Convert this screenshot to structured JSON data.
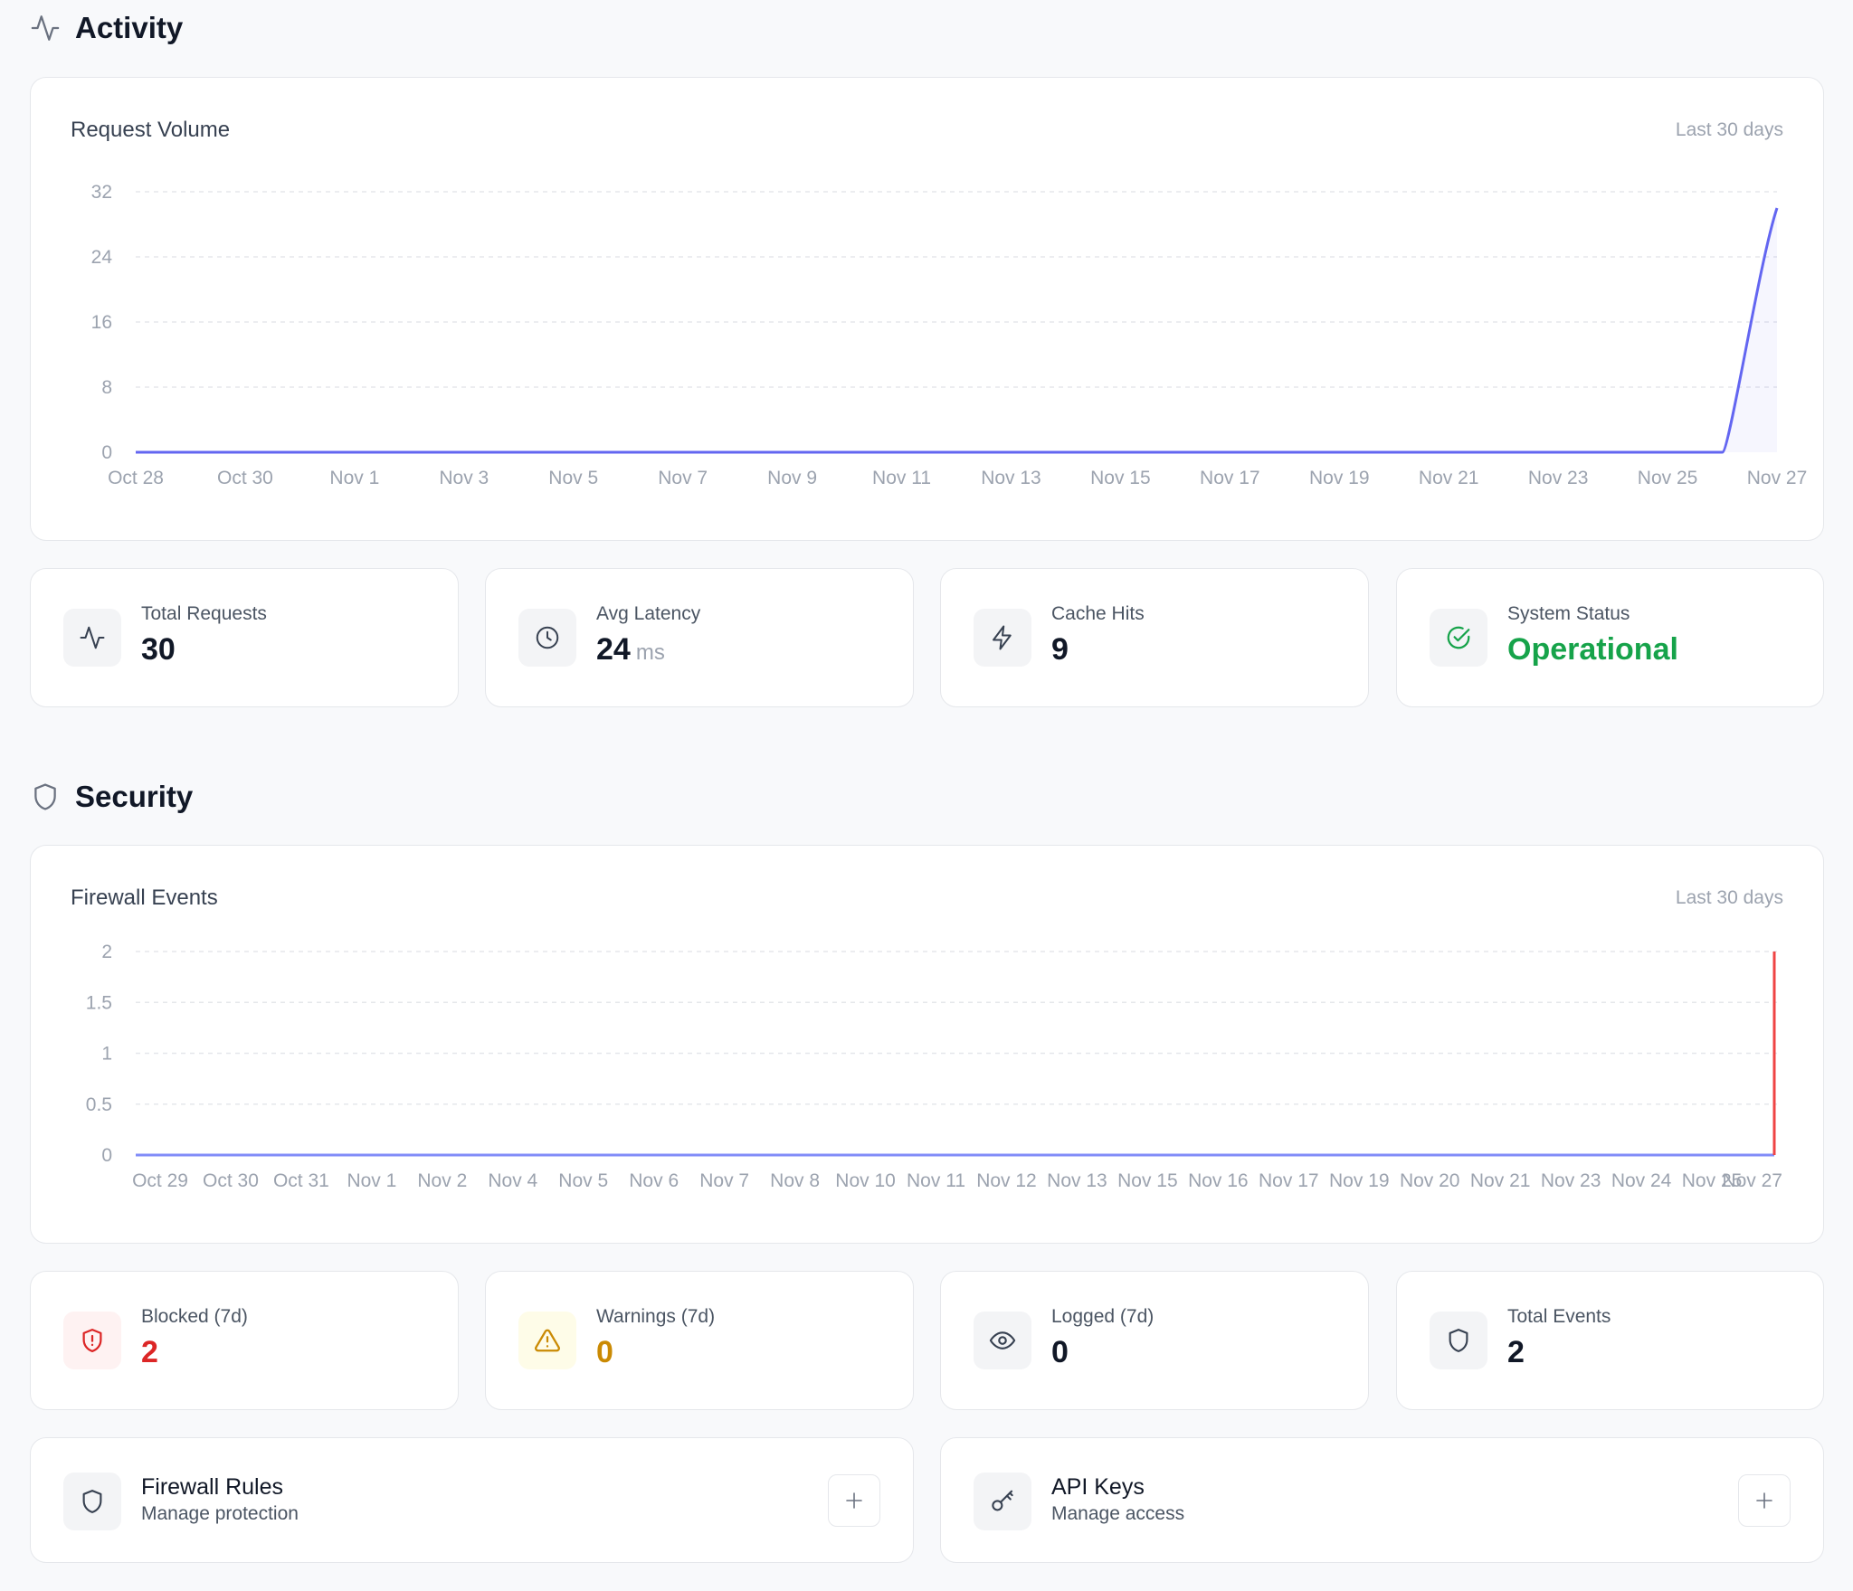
{
  "activity": {
    "heading": "Activity",
    "chart": {
      "title": "Request Volume",
      "range": "Last 30 days"
    },
    "stats": [
      {
        "label": "Total Requests",
        "value": "30",
        "unit": "",
        "icon": "activity-icon"
      },
      {
        "label": "Avg Latency",
        "value": "24",
        "unit": "ms",
        "icon": "clock-icon"
      },
      {
        "label": "Cache Hits",
        "value": "9",
        "unit": "",
        "icon": "zap-icon"
      },
      {
        "label": "System Status",
        "value": "Operational",
        "unit": "",
        "icon": "check-circle-icon",
        "color": "#16a34a"
      }
    ]
  },
  "security": {
    "heading": "Security",
    "chart": {
      "title": "Firewall Events",
      "range": "Last 30 days"
    },
    "stats": [
      {
        "label": "Blocked (7d)",
        "value": "2",
        "icon": "shield-alert-icon",
        "color": "#dc2626"
      },
      {
        "label": "Warnings (7d)",
        "value": "0",
        "icon": "warning-triangle-icon",
        "color": "#ca8a04"
      },
      {
        "label": "Logged (7d)",
        "value": "0",
        "icon": "eye-icon",
        "color": "#111827"
      },
      {
        "label": "Total Events",
        "value": "2",
        "icon": "shield-icon",
        "color": "#111827"
      }
    ],
    "links": [
      {
        "title": "Firewall Rules",
        "subtitle": "Manage protection",
        "icon": "shield-icon"
      },
      {
        "title": "API Keys",
        "subtitle": "Manage access",
        "icon": "key-icon"
      }
    ]
  },
  "colors": {
    "requests_line": "#6366f1",
    "firewall_blocked": "#ef4444",
    "firewall_base": "#818cf8"
  },
  "chart_data": [
    {
      "type": "area",
      "title": "Request Volume",
      "ylim": [
        0,
        32
      ],
      "yticks": [
        "0",
        "8",
        "16",
        "24",
        "32"
      ],
      "xticks": [
        "Oct 28",
        "Oct 30",
        "Nov 1",
        "Nov 3",
        "Nov 5",
        "Nov 7",
        "Nov 9",
        "Nov 11",
        "Nov 13",
        "Nov 15",
        "Nov 17",
        "Nov 19",
        "Nov 21",
        "Nov 23",
        "Nov 25",
        "Nov 27"
      ],
      "x": [
        "Oct 28",
        "Oct 29",
        "Oct 30",
        "Oct 31",
        "Nov 1",
        "Nov 2",
        "Nov 3",
        "Nov 4",
        "Nov 5",
        "Nov 6",
        "Nov 7",
        "Nov 8",
        "Nov 9",
        "Nov 10",
        "Nov 11",
        "Nov 12",
        "Nov 13",
        "Nov 14",
        "Nov 15",
        "Nov 16",
        "Nov 17",
        "Nov 18",
        "Nov 19",
        "Nov 20",
        "Nov 21",
        "Nov 22",
        "Nov 23",
        "Nov 24",
        "Nov 25",
        "Nov 26",
        "Nov 27"
      ],
      "series": [
        {
          "values": [
            0,
            0,
            0,
            0,
            0,
            0,
            0,
            0,
            0,
            0,
            0,
            0,
            0,
            0,
            0,
            0,
            0,
            0,
            0,
            0,
            0,
            0,
            0,
            0,
            0,
            0,
            0,
            0,
            0,
            0,
            30
          ]
        }
      ],
      "grid": true
    },
    {
      "type": "line",
      "title": "Firewall Events",
      "ylim": [
        0,
        2
      ],
      "yticks": [
        "0",
        "0.5",
        "1",
        "1.5",
        "2"
      ],
      "xticks": [
        "Oct 29",
        "Oct 30",
        "Oct 31",
        "Nov 1",
        "Nov 2",
        "Nov 4",
        "Nov 5",
        "Nov 6",
        "Nov 7",
        "Nov 8",
        "Nov 10",
        "Nov 11",
        "Nov 12",
        "Nov 13",
        "Nov 15",
        "Nov 16",
        "Nov 17",
        "Nov 19",
        "Nov 20",
        "Nov 21",
        "Nov 23",
        "Nov 24",
        "Nov 25",
        "Nov 27"
      ],
      "series": [
        {
          "values": [
            0,
            0,
            0,
            0,
            0,
            0,
            0,
            0,
            0,
            0,
            0,
            0,
            0,
            0,
            0,
            0,
            0,
            0,
            0,
            0,
            0,
            0,
            0,
            0
          ]
        },
        {
          "values": [
            0,
            0,
            0,
            0,
            0,
            0,
            0,
            0,
            0,
            0,
            0,
            0,
            0,
            0,
            0,
            0,
            0,
            0,
            0,
            0,
            0,
            0,
            0,
            2
          ]
        }
      ],
      "grid": true
    }
  ]
}
